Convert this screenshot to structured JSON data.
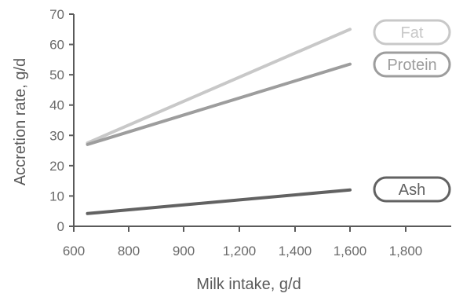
{
  "chart_data": {
    "type": "line",
    "title": "",
    "xlabel": "Milk intake, g/d",
    "ylabel": "Accretion rate, g/d",
    "x_tick_labels": [
      "600",
      "800",
      "900",
      "1,200",
      "1,400",
      "1,600",
      "1,800"
    ],
    "y_ticks": [
      0,
      10,
      20,
      30,
      40,
      50,
      60,
      70
    ],
    "ylim": [
      0,
      70
    ],
    "x": [
      "650",
      "1,600"
    ],
    "series": [
      {
        "name": "Fat",
        "values": [
          27.5,
          65
        ],
        "color": "#c8c8c8"
      },
      {
        "name": "Protein",
        "values": [
          27,
          53.5
        ],
        "color": "#9d9d9d"
      },
      {
        "name": "Ash",
        "values": [
          4.2,
          12
        ],
        "color": "#626262"
      }
    ],
    "grid": false,
    "legend": "inline labels at right end of lines"
  }
}
